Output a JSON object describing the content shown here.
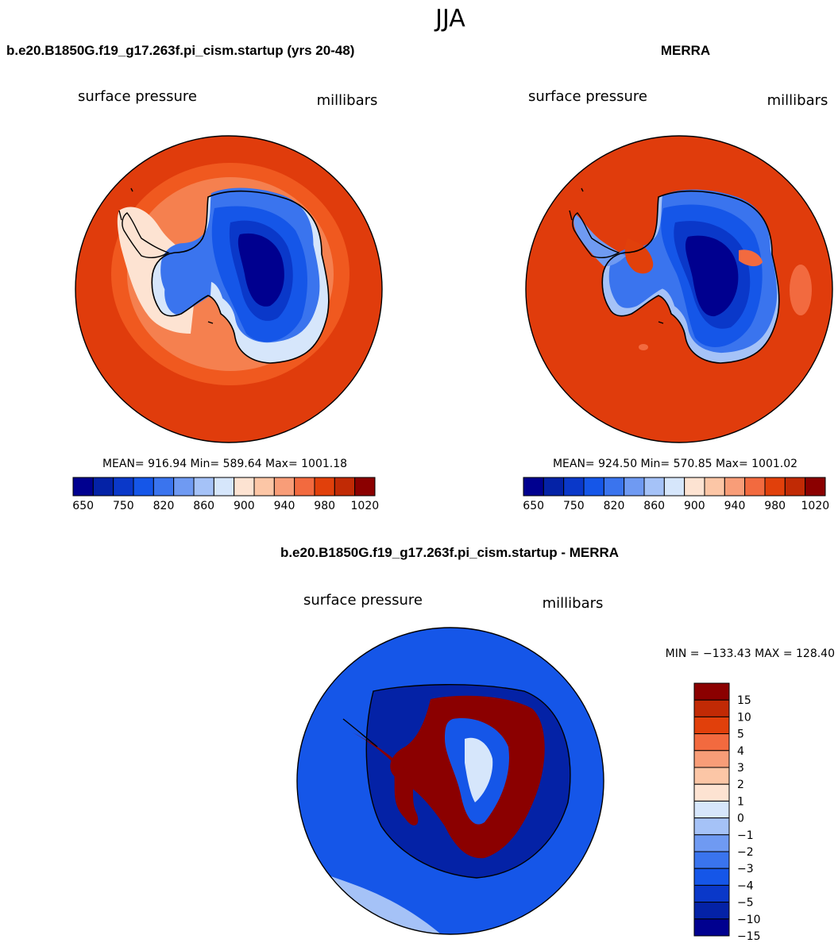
{
  "season": "JJA",
  "colors": {
    "abs_palette": [
      "#00008f",
      "#0422a6",
      "#0a38c9",
      "#1556e8",
      "#3a74ee",
      "#6f9af2",
      "#a5c2f7",
      "#d6e6fb",
      "#fde3d2",
      "#fcc6a6",
      "#f89d78",
      "#f26a3f",
      "#e1400b",
      "#c12a05",
      "#8b0000"
    ],
    "diff_palette": [
      "#00008f",
      "#0422a6",
      "#0a38c9",
      "#1556e8",
      "#3a74ee",
      "#6f9af2",
      "#a5c2f7",
      "#d6e6fb",
      "#fde3d2",
      "#fcc6a6",
      "#f89d78",
      "#f26a3f",
      "#e1400b",
      "#c12a05",
      "#8b0000"
    ],
    "coast": "#000000"
  },
  "chart_data": [
    {
      "type": "contour-map",
      "panel": "model",
      "title": "b.e20.B1850G.f19_g17.263f.pi_cism.startup (yrs 20-48)",
      "variable": "surface pressure",
      "units": "millibars",
      "region": "Antarctica (south polar stereographic)",
      "stats": {
        "mean": 916.94,
        "min": 589.64,
        "max": 1001.18
      },
      "stats_text": "MEAN= 916.94   Min= 589.64   Max= 1001.18",
      "levels": [
        650,
        700,
        750,
        800,
        820,
        840,
        860,
        880,
        900,
        920,
        940,
        960,
        980,
        1000,
        1020
      ],
      "tick_labels": [
        "650",
        "750",
        "820",
        "860",
        "900",
        "940",
        "980",
        "1020"
      ]
    },
    {
      "type": "contour-map",
      "panel": "obs",
      "title": "MERRA",
      "variable": "surface pressure",
      "units": "millibars",
      "region": "Antarctica (south polar stereographic)",
      "stats": {
        "mean": 924.5,
        "min": 570.85,
        "max": 1001.02
      },
      "stats_text": "MEAN= 924.50   Min= 570.85   Max= 1001.02",
      "levels": [
        650,
        700,
        750,
        800,
        820,
        840,
        860,
        880,
        900,
        920,
        940,
        960,
        980,
        1000,
        1020
      ],
      "tick_labels": [
        "650",
        "750",
        "820",
        "860",
        "900",
        "940",
        "980",
        "1020"
      ]
    },
    {
      "type": "contour-map",
      "panel": "difference",
      "title": "b.e20.B1850G.f19_g17.263f.pi_cism.startup - MERRA",
      "variable": "surface pressure",
      "units": "millibars",
      "region": "Antarctica (south polar stereographic)",
      "stats": {
        "min": -133.43,
        "max": 128.4
      },
      "stats_text": "MIN = −133.43 MAX = 128.40",
      "tick_labels": [
        "15",
        "10",
        "5",
        "4",
        "3",
        "2",
        "1",
        "0",
        "−1",
        "−2",
        "−3",
        "−4",
        "−5",
        "−10",
        "−15"
      ]
    }
  ]
}
